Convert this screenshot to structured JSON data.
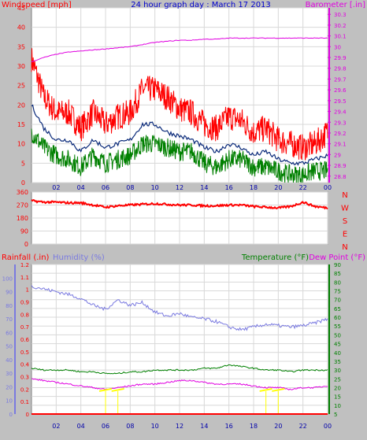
{
  "colors": {
    "background": "#c0c0c0",
    "plot_bg": "#ffffff",
    "grid": "#d8d8d8",
    "wind_gust": "#ff0000",
    "wind_avg": "#008000",
    "wind_mid": "#0a2a7a",
    "barometer": "#e000e0",
    "title": "#0000cc",
    "direction": "#ff0000",
    "rainfall": "#ff0000",
    "humidity": "#7a7ae0",
    "temperature": "#008000",
    "dewpoint": "#e000e0",
    "solar": "#ffff00"
  },
  "chart_data": [
    {
      "type": "line",
      "panel": "wind-barometer",
      "title": "24 hour graph day : March 17 2013",
      "ylabel_left": "Windspeed [mph]",
      "ylabel_right": "Barometer [.in]",
      "x_ticks": [
        "02",
        "04",
        "06",
        "08",
        "10",
        "12",
        "14",
        "16",
        "18",
        "20",
        "22",
        "00"
      ],
      "y_left_ticks": [
        0,
        5,
        10,
        15,
        20,
        25,
        30,
        35,
        40,
        45
      ],
      "y_left_lim": [
        0,
        45
      ],
      "y_right_ticks": [
        "28.8",
        "28.9",
        "29",
        "29.1",
        "29.2",
        "29.3",
        "29.4",
        "29.5",
        "29.6",
        "29.7",
        "29.8",
        "29.9",
        "30",
        "30.1",
        "30.2",
        "30.3"
      ],
      "y_right_lim": [
        28.74,
        30.36
      ],
      "hours": [
        0,
        1,
        2,
        3,
        4,
        5,
        6,
        7,
        8,
        9,
        10,
        11,
        12,
        13,
        14,
        15,
        16,
        17,
        18,
        19,
        20,
        21,
        22,
        23,
        24
      ],
      "series": [
        {
          "key": "gust",
          "values": [
            32,
            22,
            18,
            18,
            14,
            18,
            15,
            17,
            18,
            24,
            24,
            22,
            19,
            18,
            15,
            14,
            17,
            16,
            13,
            14,
            11,
            10,
            9,
            10,
            13
          ]
        },
        {
          "key": "avg",
          "values": [
            20,
            14,
            11,
            11,
            8,
            11,
            9,
            10,
            11,
            15,
            15,
            13,
            12,
            11,
            9,
            8,
            10,
            9,
            7,
            8,
            6,
            5,
            5,
            6,
            7
          ]
        },
        {
          "key": "low",
          "values": [
            13,
            9,
            7,
            6,
            4,
            7,
            5,
            6,
            7,
            10,
            10,
            9,
            8,
            8,
            5,
            4,
            6,
            6,
            4,
            4,
            3,
            2,
            2,
            3,
            3
          ]
        },
        {
          "key": "barometer",
          "values": [
            29.86,
            29.9,
            29.93,
            29.95,
            29.96,
            29.97,
            29.98,
            29.99,
            30.0,
            30.02,
            30.04,
            30.05,
            30.06,
            30.06,
            30.07,
            30.07,
            30.08,
            30.08,
            30.08,
            30.08,
            30.08,
            30.08,
            30.08,
            30.08,
            30.08
          ]
        }
      ]
    },
    {
      "type": "line",
      "panel": "wind-direction",
      "y_ticks": [
        0,
        90,
        180,
        270,
        360
      ],
      "y_lim": [
        0,
        360
      ],
      "compass": [
        "N",
        "W",
        "S",
        "E",
        "N"
      ],
      "hours": [
        0,
        1,
        2,
        3,
        4,
        5,
        6,
        7,
        8,
        9,
        10,
        11,
        12,
        13,
        14,
        15,
        16,
        17,
        18,
        19,
        20,
        21,
        22,
        23,
        24
      ],
      "series": [
        {
          "key": "direction",
          "values": [
            300,
            290,
            290,
            285,
            285,
            270,
            255,
            265,
            270,
            275,
            280,
            275,
            270,
            270,
            265,
            265,
            270,
            270,
            260,
            255,
            250,
            260,
            290,
            260,
            250
          ]
        }
      ]
    },
    {
      "type": "line",
      "panel": "humidity-temperature",
      "label_rainfall": "Rainfall (.in)",
      "label_humidity": "Humidity (%)",
      "label_temperature": "Temperature (°F)",
      "label_dewpoint": "Dew Point (°F)",
      "x_ticks": [
        "02",
        "04",
        "06",
        "08",
        "10",
        "12",
        "14",
        "16",
        "18",
        "20",
        "22",
        "00"
      ],
      "rain_ticks": [
        "0",
        "0.1",
        "0.2",
        "0.3",
        "0.4",
        "0.5",
        "0.6",
        "0.7",
        "0.8",
        "0.9",
        "1",
        "1.1",
        "1.2"
      ],
      "rain_lim": [
        0,
        1.2
      ],
      "humidity_ticks": [
        0,
        10,
        20,
        30,
        40,
        50,
        60,
        70,
        80,
        90,
        100
      ],
      "humidity_lim": [
        0,
        110
      ],
      "temp_ticks": [
        5,
        10,
        15,
        20,
        25,
        30,
        35,
        40,
        45,
        50,
        55,
        60,
        65,
        70,
        75,
        80,
        85,
        90
      ],
      "temp_lim": [
        5,
        90
      ],
      "hours": [
        0,
        1,
        2,
        3,
        4,
        5,
        6,
        7,
        8,
        9,
        10,
        11,
        12,
        13,
        14,
        15,
        16,
        17,
        18,
        19,
        20,
        21,
        22,
        23,
        24
      ],
      "series": [
        {
          "key": "humidity",
          "values": [
            94,
            92,
            90,
            88,
            85,
            80,
            77,
            84,
            80,
            82,
            75,
            72,
            74,
            71,
            70,
            68,
            64,
            62,
            64,
            66,
            65,
            64,
            65,
            67,
            70
          ]
        },
        {
          "key": "temperature",
          "values": [
            31,
            30,
            30,
            30,
            29,
            29,
            28,
            28,
            29,
            29,
            30,
            30,
            30,
            30,
            31,
            31,
            33,
            32,
            31,
            30,
            30,
            29,
            30,
            30,
            30
          ]
        },
        {
          "key": "dewpoint",
          "values": [
            25,
            24,
            23,
            22,
            21,
            20,
            19,
            20,
            21,
            22,
            22,
            23,
            24,
            24,
            23,
            22,
            22,
            22,
            21,
            20,
            20,
            19,
            20,
            20,
            21
          ]
        },
        {
          "key": "solar",
          "values": [
            0,
            0,
            0,
            0,
            0,
            0,
            0.3,
            0.4,
            0,
            0,
            0,
            0,
            0,
            0,
            0,
            0,
            0,
            0,
            0,
            0.3,
            0.4,
            0,
            0,
            0,
            0
          ]
        }
      ]
    }
  ]
}
